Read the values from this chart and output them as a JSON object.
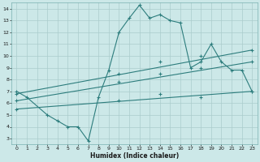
{
  "xlabel": "Humidex (Indice chaleur)",
  "ylabel": "",
  "bg_color": "#cce8e8",
  "grid_color": "#aacccc",
  "line_color": "#2d7d7d",
  "xlim": [
    -0.5,
    23.5
  ],
  "ylim": [
    2.5,
    14.5
  ],
  "xticks": [
    0,
    1,
    2,
    3,
    4,
    5,
    6,
    7,
    8,
    9,
    10,
    11,
    12,
    13,
    14,
    15,
    16,
    17,
    18,
    19,
    20,
    21,
    22,
    23
  ],
  "yticks": [
    3,
    4,
    5,
    6,
    7,
    8,
    9,
    10,
    11,
    12,
    13,
    14
  ],
  "series1_x": [
    0,
    1,
    3,
    4,
    5,
    6,
    7,
    8,
    9,
    10,
    11,
    12,
    13,
    14,
    15,
    16,
    17,
    18,
    19,
    20,
    21,
    22,
    23
  ],
  "series1_y": [
    7,
    6.5,
    5,
    4.5,
    4,
    4,
    2.8,
    6.5,
    8.8,
    12,
    13.2,
    14.3,
    13.2,
    13.5,
    13,
    12.8,
    9,
    9.5,
    11,
    9.5,
    8.8,
    8.8,
    7
  ],
  "series2_x": [
    0,
    23
  ],
  "series2_y": [
    6.8,
    10.5
  ],
  "series3_x": [
    0,
    23
  ],
  "series3_y": [
    6.2,
    9.5
  ],
  "series4_x": [
    0,
    23
  ],
  "series4_y": [
    5.5,
    7.0
  ],
  "marker_series2_x": [
    0,
    10,
    14,
    18,
    23
  ],
  "marker_series2_y": [
    6.8,
    8.5,
    9.5,
    10.0,
    10.5
  ],
  "marker_series3_x": [
    0,
    10,
    14,
    18,
    23
  ],
  "marker_series3_y": [
    6.2,
    7.8,
    8.5,
    9.0,
    9.5
  ],
  "marker_series4_x": [
    0,
    10,
    14,
    18,
    23
  ],
  "marker_series4_y": [
    5.5,
    6.2,
    6.8,
    6.5,
    7.0
  ]
}
